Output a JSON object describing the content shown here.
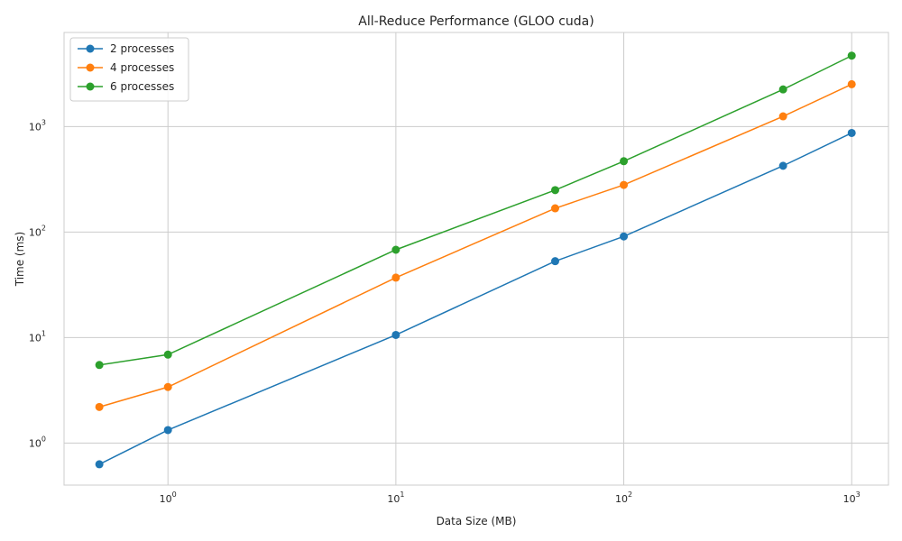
{
  "chart_data": {
    "type": "line",
    "title": "All-Reduce Performance (GLOO cuda)",
    "xlabel": "Data Size (MB)",
    "ylabel": "Time (ms)",
    "xscale": "log",
    "yscale": "log",
    "xlim": [
      0.35,
      1450
    ],
    "ylim": [
      0.4,
      7800
    ],
    "x": [
      0.5,
      1,
      10,
      50,
      100,
      500,
      1000
    ],
    "xticks": [
      {
        "value": 1,
        "base": "10",
        "exp": "0"
      },
      {
        "value": 10,
        "base": "10",
        "exp": "1"
      },
      {
        "value": 100,
        "base": "10",
        "exp": "2"
      },
      {
        "value": 1000,
        "base": "10",
        "exp": "3"
      }
    ],
    "yticks": [
      {
        "value": 1,
        "base": "10",
        "exp": "0"
      },
      {
        "value": 10,
        "base": "10",
        "exp": "1"
      },
      {
        "value": 100,
        "base": "10",
        "exp": "2"
      },
      {
        "value": 1000,
        "base": "10",
        "exp": "3"
      }
    ],
    "grid": true,
    "legend_position": "top-left",
    "series": [
      {
        "name": "2 processes",
        "color": "#1f77b4",
        "values": [
          0.63,
          1.33,
          10.6,
          53,
          91,
          425,
          870
        ]
      },
      {
        "name": "4 processes",
        "color": "#ff7f0e",
        "values": [
          2.2,
          3.4,
          37,
          168,
          280,
          1250,
          2520
        ]
      },
      {
        "name": "6 processes",
        "color": "#2ca02c",
        "values": [
          5.5,
          6.9,
          68,
          250,
          470,
          2250,
          4700
        ]
      }
    ]
  }
}
